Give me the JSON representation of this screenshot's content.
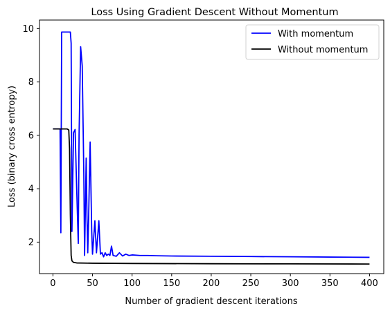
{
  "chart_data": {
    "type": "line",
    "title": "Loss Using Gradient Descent Without Momentum",
    "xlabel": "Number of gradient descent iterations",
    "ylabel": "Loss (binary cross entropy)",
    "xlim": [
      -17,
      418
    ],
    "ylim": [
      0.82,
      10.32
    ],
    "xticks": [
      0,
      50,
      100,
      150,
      200,
      250,
      300,
      350,
      400
    ],
    "yticks": [
      2,
      4,
      6,
      8,
      10
    ],
    "grid": false,
    "legend_position": "top-right",
    "series": [
      {
        "name": "With momentum",
        "color": "#0000ff",
        "points": [
          [
            0,
            6.24
          ],
          [
            9,
            6.24
          ],
          [
            10,
            2.35
          ],
          [
            11,
            9.87
          ],
          [
            22,
            9.87
          ],
          [
            23,
            9.45
          ],
          [
            24,
            2.4
          ],
          [
            26,
            6.1
          ],
          [
            28,
            6.22
          ],
          [
            30,
            4.0
          ],
          [
            32,
            1.95
          ],
          [
            33,
            6.0
          ],
          [
            35,
            9.32
          ],
          [
            37,
            8.6
          ],
          [
            39,
            4.6
          ],
          [
            40,
            1.5
          ],
          [
            42,
            5.15
          ],
          [
            43,
            3.0
          ],
          [
            44,
            1.6
          ],
          [
            45,
            2.8
          ],
          [
            47,
            5.75
          ],
          [
            49,
            2.4
          ],
          [
            50,
            1.55
          ],
          [
            53,
            2.8
          ],
          [
            55,
            1.6
          ],
          [
            58,
            2.8
          ],
          [
            60,
            1.55
          ],
          [
            62,
            1.6
          ],
          [
            64,
            1.45
          ],
          [
            66,
            1.6
          ],
          [
            68,
            1.5
          ],
          [
            70,
            1.55
          ],
          [
            72,
            1.5
          ],
          [
            74,
            1.85
          ],
          [
            76,
            1.5
          ],
          [
            80,
            1.47
          ],
          [
            84,
            1.6
          ],
          [
            88,
            1.48
          ],
          [
            92,
            1.55
          ],
          [
            96,
            1.5
          ],
          [
            100,
            1.52
          ],
          [
            110,
            1.5
          ],
          [
            120,
            1.5
          ],
          [
            130,
            1.49
          ],
          [
            150,
            1.48
          ],
          [
            200,
            1.47
          ],
          [
            250,
            1.46
          ],
          [
            300,
            1.45
          ],
          [
            350,
            1.44
          ],
          [
            400,
            1.43
          ]
        ]
      },
      {
        "name": "Without momentum",
        "color": "#000000",
        "points": [
          [
            0,
            6.24
          ],
          [
            18,
            6.24
          ],
          [
            20,
            6.2
          ],
          [
            21,
            5.5
          ],
          [
            22,
            3.0
          ],
          [
            23,
            1.5
          ],
          [
            24,
            1.3
          ],
          [
            26,
            1.24
          ],
          [
            30,
            1.22
          ],
          [
            50,
            1.21
          ],
          [
            100,
            1.2
          ],
          [
            200,
            1.19
          ],
          [
            300,
            1.185
          ],
          [
            400,
            1.18
          ]
        ]
      }
    ]
  }
}
